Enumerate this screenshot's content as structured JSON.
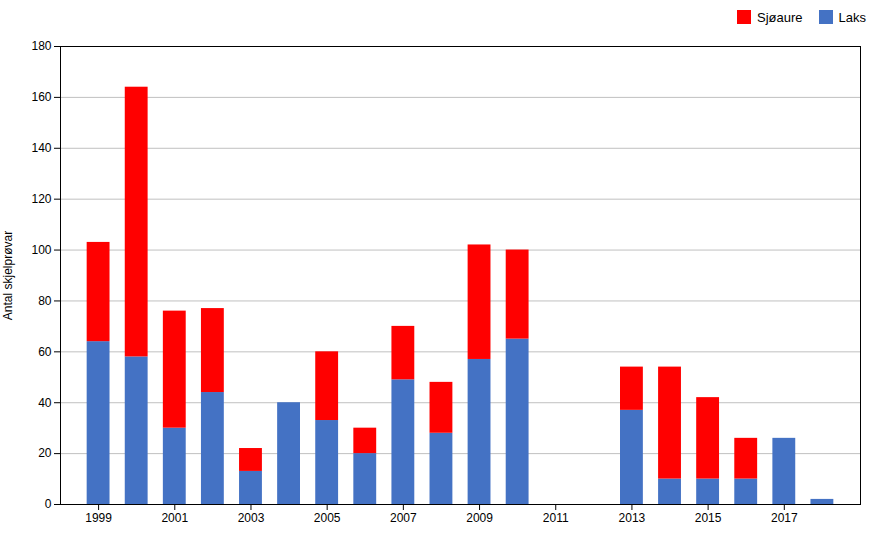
{
  "chart_data": {
    "type": "bar",
    "stacked": true,
    "x": [
      1999,
      2000,
      2001,
      2002,
      2003,
      2004,
      2005,
      2006,
      2007,
      2008,
      2009,
      2010,
      2011,
      2012,
      2013,
      2014,
      2015,
      2016,
      2017,
      2018
    ],
    "series": [
      {
        "name": "Laks",
        "color": "#4472C4",
        "values": [
          64,
          58,
          30,
          44,
          13,
          40,
          33,
          20,
          49,
          28,
          57,
          65,
          0,
          0,
          37,
          10,
          10,
          10,
          26,
          2
        ]
      },
      {
        "name": "Sjøaure",
        "color": "#FF0000",
        "values": [
          39,
          106,
          46,
          33,
          9,
          0,
          27,
          10,
          21,
          20,
          45,
          35,
          0,
          0,
          17,
          44,
          32,
          16,
          0,
          0
        ]
      }
    ],
    "ylabel": "Antal skjelprøvar",
    "xlim": [
      1998,
      2019
    ],
    "xticks": [
      1999,
      2001,
      2003,
      2005,
      2007,
      2009,
      2011,
      2013,
      2015,
      2017
    ],
    "ylim": [
      0,
      180
    ],
    "yticks": [
      0,
      20,
      40,
      60,
      80,
      100,
      120,
      140,
      160,
      180
    ],
    "grid": "y",
    "legend": "upper right"
  }
}
